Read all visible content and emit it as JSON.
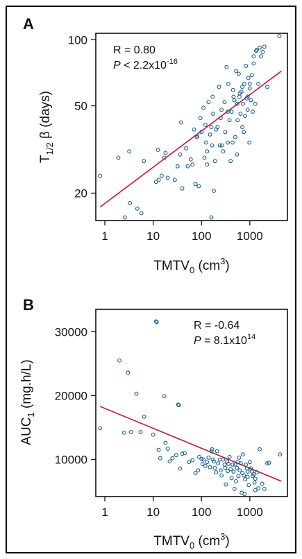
{
  "chart_data": [
    {
      "panel": "A",
      "type": "scatter",
      "xscale": "log",
      "yscale": "log",
      "xlabel": "TMTV",
      "xlabel_sub": "0",
      "xlabel_unit_open": " (cm",
      "xlabel_unit_sup": "3",
      "xlabel_unit_close": ")",
      "ylabel_main": "T",
      "ylabel_sub": "1/2",
      "ylabel_rest": " β (days)",
      "xticks": [
        1,
        10,
        100,
        1000
      ],
      "xtick_labels": [
        "1",
        "10",
        "100",
        "1000"
      ],
      "yticks": [
        20,
        50,
        100
      ],
      "ytick_labels": [
        "20",
        "50",
        "100"
      ],
      "xlim": [
        0.65,
        6000
      ],
      "ylim": [
        15,
        107
      ],
      "annotation_r": "R = 0.80",
      "annotation_p_label": "P",
      "annotation_p_rest": " < 2.2x10",
      "annotation_p_sup": "-16",
      "fit_line": [
        [
          0.8,
          17.3
        ],
        [
          4500,
          72
        ]
      ],
      "points": [
        [
          0.8,
          24
        ],
        [
          1.9,
          29
        ],
        [
          3.2,
          31
        ],
        [
          2.6,
          15.5
        ],
        [
          3.3,
          18
        ],
        [
          4.7,
          17
        ],
        [
          5.7,
          16.2
        ],
        [
          6.4,
          28
        ],
        [
          11.5,
          22.5
        ],
        [
          12.6,
          31.5
        ],
        [
          13,
          23
        ],
        [
          15,
          24
        ],
        [
          17,
          29
        ],
        [
          18,
          30.5
        ],
        [
          20,
          23.5
        ],
        [
          28,
          23
        ],
        [
          32,
          26.5
        ],
        [
          36,
          30
        ],
        [
          38,
          42
        ],
        [
          40,
          21
        ],
        [
          48,
          32
        ],
        [
          52,
          26.5
        ],
        [
          60,
          28.5
        ],
        [
          65,
          27
        ],
        [
          70,
          39
        ],
        [
          75,
          22
        ],
        [
          80,
          36
        ],
        [
          82,
          36.5
        ],
        [
          88,
          21.5
        ],
        [
          95,
          44
        ],
        [
          100,
          38
        ],
        [
          110,
          49
        ],
        [
          115,
          29
        ],
        [
          120,
          41
        ],
        [
          125,
          34
        ],
        [
          130,
          27
        ],
        [
          140,
          52
        ],
        [
          150,
          37
        ],
        [
          160,
          15.5
        ],
        [
          165,
          33
        ],
        [
          170,
          55
        ],
        [
          175,
          46
        ],
        [
          180,
          20.5
        ],
        [
          190,
          28
        ],
        [
          200,
          39
        ],
        [
          215,
          40
        ],
        [
          230,
          61
        ],
        [
          240,
          33
        ],
        [
          250,
          44
        ],
        [
          265,
          33
        ],
        [
          280,
          31
        ],
        [
          300,
          52
        ],
        [
          310,
          38
        ],
        [
          330,
          75
        ],
        [
          350,
          47
        ],
        [
          360,
          63
        ],
        [
          380,
          43
        ],
        [
          400,
          28
        ],
        [
          420,
          47
        ],
        [
          440,
          34
        ],
        [
          460,
          55
        ],
        [
          480,
          53
        ],
        [
          500,
          36
        ],
        [
          520,
          72
        ],
        [
          540,
          30
        ],
        [
          560,
          43
        ],
        [
          590,
          70
        ],
        [
          610,
          55
        ],
        [
          640,
          46
        ],
        [
          670,
          58
        ],
        [
          700,
          61
        ],
        [
          720,
          51
        ],
        [
          750,
          38
        ],
        [
          770,
          63
        ],
        [
          800,
          45
        ],
        [
          830,
          76
        ],
        [
          860,
          54
        ],
        [
          900,
          48
        ],
        [
          930,
          67
        ],
        [
          980,
          34
        ],
        [
          1000,
          60
        ],
        [
          1050,
          53
        ],
        [
          1100,
          69
        ],
        [
          1150,
          47
        ],
        [
          1200,
          78
        ],
        [
          1300,
          51
        ],
        [
          1350,
          89
        ],
        [
          1400,
          90
        ],
        [
          1500,
          63
        ],
        [
          1600,
          92
        ],
        [
          1700,
          84
        ],
        [
          1850,
          88
        ],
        [
          2000,
          93
        ],
        [
          2300,
          61
        ],
        [
          4100,
          104
        ],
        [
          350,
          34
        ],
        [
          620,
          57
        ],
        [
          900,
          55
        ],
        [
          260,
          48
        ],
        [
          160,
          40
        ],
        [
          700,
          40
        ],
        [
          1000,
          63
        ],
        [
          450,
          59
        ],
        [
          130,
          31
        ],
        [
          550,
          51
        ],
        [
          1200,
          84
        ]
      ]
    },
    {
      "panel": "B",
      "type": "scatter",
      "xscale": "log",
      "yscale": "linear",
      "xlabel": "TMTV",
      "xlabel_sub": "0",
      "xlabel_unit_open": " (cm",
      "xlabel_unit_sup": "3",
      "xlabel_unit_close": ")",
      "ylabel_main": "AUC",
      "ylabel_sub": "1",
      "ylabel_rest": " (mg.h/L)",
      "xticks": [
        1,
        10,
        100,
        1000
      ],
      "xtick_labels": [
        "1",
        "10",
        "100",
        "1000"
      ],
      "yticks": [
        10000,
        20000,
        30000
      ],
      "ytick_labels": [
        "10000",
        "20000",
        "30000"
      ],
      "xlim": [
        0.65,
        6000
      ],
      "ylim": [
        4200,
        33500
      ],
      "annotation_r": "R = -0.64",
      "annotation_p_label": "P",
      "annotation_p_rest": " = 8.1x10",
      "annotation_p_sup": "14",
      "fit_line": [
        [
          0.8,
          18300
        ],
        [
          4500,
          6600
        ]
      ],
      "points": [
        [
          0.8,
          14900
        ],
        [
          2.0,
          25500
        ],
        [
          2.5,
          14200
        ],
        [
          3.0,
          23600
        ],
        [
          3.5,
          14300
        ],
        [
          4.5,
          20300
        ],
        [
          5.5,
          14300
        ],
        [
          6.5,
          16700
        ],
        [
          10,
          13900
        ],
        [
          11.5,
          31600
        ],
        [
          11.8,
          31500
        ],
        [
          13,
          11500
        ],
        [
          14,
          10200
        ],
        [
          17,
          19900
        ],
        [
          18,
          12600
        ],
        [
          20,
          11700
        ],
        [
          22,
          9700
        ],
        [
          25,
          10200
        ],
        [
          30,
          10700
        ],
        [
          33,
          18600
        ],
        [
          34,
          18500
        ],
        [
          36,
          8600
        ],
        [
          40,
          10900
        ],
        [
          45,
          11000
        ],
        [
          55,
          9600
        ],
        [
          65,
          9900
        ],
        [
          75,
          7900
        ],
        [
          85,
          8300
        ],
        [
          90,
          10400
        ],
        [
          100,
          10100
        ],
        [
          105,
          9300
        ],
        [
          110,
          10000
        ],
        [
          120,
          9000
        ],
        [
          130,
          9600
        ],
        [
          140,
          10300
        ],
        [
          150,
          8800
        ],
        [
          160,
          11300
        ],
        [
          165,
          11600
        ],
        [
          170,
          10000
        ],
        [
          180,
          9700
        ],
        [
          190,
          8700
        ],
        [
          200,
          8000
        ],
        [
          210,
          11300
        ],
        [
          220,
          9400
        ],
        [
          240,
          10000
        ],
        [
          250,
          8300
        ],
        [
          260,
          7500
        ],
        [
          280,
          10000
        ],
        [
          300,
          9200
        ],
        [
          310,
          8700
        ],
        [
          320,
          6100
        ],
        [
          340,
          9700
        ],
        [
          360,
          9300
        ],
        [
          380,
          10400
        ],
        [
          400,
          8500
        ],
        [
          420,
          7100
        ],
        [
          440,
          9200
        ],
        [
          460,
          8100
        ],
        [
          480,
          5400
        ],
        [
          500,
          9200
        ],
        [
          520,
          6600
        ],
        [
          540,
          8700
        ],
        [
          560,
          9600
        ],
        [
          580,
          7400
        ],
        [
          620,
          8300
        ],
        [
          650,
          9400
        ],
        [
          680,
          4800
        ],
        [
          700,
          7900
        ],
        [
          720,
          10800
        ],
        [
          750,
          7500
        ],
        [
          780,
          4600
        ],
        [
          800,
          6900
        ],
        [
          830,
          9200
        ],
        [
          870,
          8600
        ],
        [
          900,
          8100
        ],
        [
          950,
          6000
        ],
        [
          1000,
          9600
        ],
        [
          1050,
          8600
        ],
        [
          1100,
          8100
        ],
        [
          1150,
          7400
        ],
        [
          1200,
          7700
        ],
        [
          1250,
          6400
        ],
        [
          1300,
          5200
        ],
        [
          1400,
          8000
        ],
        [
          1500,
          5500
        ],
        [
          1600,
          11600
        ],
        [
          1800,
          6200
        ],
        [
          2000,
          5400
        ],
        [
          2300,
          9400
        ],
        [
          2500,
          9500
        ],
        [
          4200,
          10800
        ],
        [
          600,
          10300
        ],
        [
          900,
          7300
        ],
        [
          350,
          8200
        ],
        [
          1300,
          7000
        ]
      ]
    }
  ]
}
